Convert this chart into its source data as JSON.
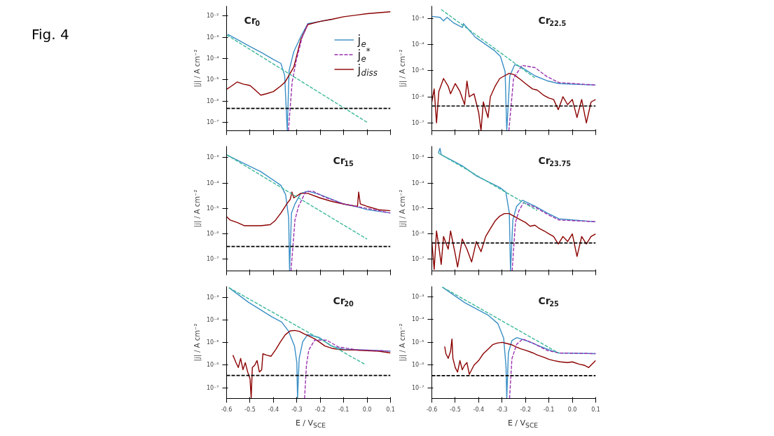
{
  "chart_data": [
    {
      "type": "line",
      "title": "Cr$_{0}$",
      "ylabel": "|j| / A cm⁻²",
      "annotations": [
        "Fig. 4"
      ],
      "log": true,
      "grid": false,
      "legend": "right",
      "marker": "none",
      "tick_labels": "y",
      "xlim": [
        -0.6,
        0.1
      ],
      "ylim": [
        4e-08,
        0.03
      ],
      "xticks": [
        -0.6,
        -0.5,
        -0.4,
        -0.3,
        -0.2,
        -0.1,
        0.0,
        0.1
      ],
      "yticks": [
        {
          "value": 1e-07,
          "label": "10⁻⁷"
        },
        {
          "value": 1e-06,
          "label": "10⁻⁶"
        },
        {
          "value": 1e-05,
          "label": "10⁻⁵"
        },
        {
          "value": 0.0001,
          "label": "10⁻⁴"
        },
        {
          "value": 0.001,
          "label": "10⁻³"
        },
        {
          "value": 0.01,
          "label": "10⁻²"
        }
      ],
      "ref_lines": [
        {
          "axis": "y",
          "value": 4.5e-07,
          "color": "#000000",
          "line_style": "dashed"
        }
      ],
      "series": [
        {
          "name": "j$_{e}$",
          "color": "#3a8fc6",
          "line_style": "solid",
          "x": [
            -0.595,
            -0.5,
            -0.45,
            -0.4,
            -0.368,
            -0.352,
            -0.341,
            -0.333,
            -0.313,
            -0.283,
            -0.253,
            -0.202,
            -0.15
          ],
          "values": [
            0.0014,
            0.00037,
            0.00019,
            9.1e-05,
            5.9e-05,
            1.6e-05,
            4e-08,
            2.8e-05,
            0.00021,
            0.0011,
            0.0044,
            0.0056,
            0.0071
          ]
        },
        {
          "name": "j$_{e}$$^{*}$",
          "color": "#9b30b0",
          "line_style": "dashed",
          "x": [
            -0.336,
            -0.32,
            -0.303,
            -0.278,
            -0.253
          ],
          "values": [
            4e-08,
            7.9e-06,
            7.6e-05,
            0.00095,
            0.0044
          ]
        },
        {
          "name": "j$_{diss}$",
          "color": "#8b0000",
          "line_style": "solid",
          "x": [
            -0.6,
            -0.58,
            -0.555,
            -0.53,
            -0.5,
            -0.48,
            -0.454,
            -0.43,
            -0.4,
            -0.37,
            -0.35,
            -0.33,
            -0.313,
            -0.283,
            -0.253,
            -0.202,
            -0.15,
            -0.1,
            0.0,
            0.1
          ],
          "values": [
            3.6e-06,
            5e-06,
            7.9e-06,
            6.3e-06,
            5.4e-06,
            3.5e-06,
            1.9e-06,
            2.2e-06,
            2.8e-06,
            5e-06,
            7.9e-06,
            1.9e-05,
            4e-05,
            0.00079,
            0.004,
            0.0056,
            0.0071,
            0.0093,
            0.013,
            0.016
          ]
        },
        {
          "type": "line",
          "color": "#3cb89a",
          "line_style": "dashed",
          "x": [
            -0.6,
            0.0
          ],
          "values": [
            0.0013,
            1e-07
          ]
        }
      ]
    },
    {
      "type": "line",
      "title": "Cr$_{22.5}$",
      "ylabel": "|j| / A cm⁻²",
      "log": true,
      "grid": false,
      "marker": "none",
      "tick_labels": "y",
      "xlim": [
        -0.6,
        0.1
      ],
      "ylim": [
        5e-08,
        0.003
      ],
      "xticks": [
        -0.6,
        -0.5,
        -0.4,
        -0.3,
        -0.2,
        -0.1,
        0.0,
        0.1
      ],
      "yticks": [
        {
          "value": 1e-07,
          "label": "10⁻⁷"
        },
        {
          "value": 1e-06,
          "label": "10⁻⁶"
        },
        {
          "value": 1e-05,
          "label": "10⁻⁵"
        },
        {
          "value": 0.0001,
          "label": "10⁻⁴"
        },
        {
          "value": 0.001,
          "label": "10⁻³"
        }
      ],
      "ref_lines": [
        {
          "axis": "y",
          "value": 4.4e-07,
          "color": "#000000",
          "line_style": "dashed"
        }
      ],
      "series": [
        {
          "type": "line",
          "color": "#3a8fc6",
          "line_style": "solid",
          "x": [
            -0.6,
            -0.565,
            -0.55,
            -0.535,
            -0.506,
            -0.47,
            -0.465,
            -0.414,
            -0.333,
            -0.307,
            -0.287,
            -0.28,
            -0.267,
            -0.246,
            -0.22,
            -0.159,
            -0.108,
            -0.057,
            0.1
          ],
          "values": [
            0.0012,
            0.0011,
            0.00081,
            0.0011,
            0.00066,
            0.00045,
            0.00063,
            0.00019,
            5.9e-05,
            3.5e-05,
            9.1e-06,
            5e-08,
            6.3e-06,
            1.7e-05,
            1.4e-05,
            6.3e-06,
            4.1e-06,
            3.2e-06,
            2.8e-06
          ]
        },
        {
          "type": "line",
          "color": "#9b30b0",
          "line_style": "dashed",
          "x": [
            -0.271,
            -0.251,
            -0.215,
            -0.159,
            -0.108,
            -0.057,
            0.1
          ],
          "values": [
            5e-08,
            5e-06,
            1.6e-05,
            1.3e-05,
            5.9e-06,
            3.5e-06,
            2.8e-06
          ]
        },
        {
          "type": "line",
          "color": "#8b0000",
          "line_style": "solid",
          "x": [
            -0.6,
            -0.59,
            -0.58,
            -0.57,
            -0.55,
            -0.53,
            -0.52,
            -0.5,
            -0.48,
            -0.46,
            -0.45,
            -0.44,
            -0.42,
            -0.4,
            -0.39,
            -0.38,
            -0.36,
            -0.35,
            -0.33,
            -0.31,
            -0.29,
            -0.27,
            -0.25,
            -0.22,
            -0.2,
            -0.17,
            -0.15,
            -0.12,
            -0.1,
            -0.08,
            -0.06,
            -0.04,
            -0.02,
            0.0,
            0.02,
            0.04,
            0.06,
            0.08,
            0.1
          ],
          "values": [
            6.3e-07,
            2e-06,
            1e-07,
            1.6e-06,
            5e-06,
            2.5e-06,
            1.3e-06,
            3.2e-06,
            1.6e-06,
            5e-07,
            4e-06,
            1e-06,
            1.3e-06,
            2.5e-07,
            5e-08,
            6.3e-07,
            1.6e-07,
            1e-06,
            2.5e-06,
            5e-06,
            6.3e-06,
            7.9e-06,
            7.1e-06,
            4.5e-06,
            3.2e-06,
            2e-06,
            1.8e-06,
            1.1e-06,
            8.9e-07,
            7.9e-07,
            3.2e-07,
            1e-06,
            5e-07,
            7.9e-07,
            1.6e-07,
            7.9e-07,
            1e-07,
            6.3e-07,
            7.9e-07
          ]
        },
        {
          "type": "line",
          "color": "#3cb89a",
          "line_style": "dashed",
          "x": [
            -0.56,
            -0.16
          ],
          "values": [
            0.0022,
            5.3e-06
          ]
        }
      ]
    },
    {
      "type": "line",
      "title": "Cr$_{15}$",
      "ylabel": "|j| / A cm⁻²",
      "log": true,
      "grid": false,
      "marker": "none",
      "tick_labels": "y",
      "xlim": [
        -0.6,
        0.1
      ],
      "ylim": [
        3.5e-08,
        0.0028
      ],
      "xticks": [
        -0.6,
        -0.5,
        -0.4,
        -0.3,
        -0.2,
        -0.1,
        0.0,
        0.1
      ],
      "yticks": [
        {
          "value": 1e-07,
          "label": "10⁻⁷"
        },
        {
          "value": 1e-06,
          "label": "10⁻⁶"
        },
        {
          "value": 1e-05,
          "label": "10⁻⁵"
        },
        {
          "value": 0.0001,
          "label": "10⁻⁴"
        },
        {
          "value": 0.001,
          "label": "10⁻³"
        }
      ],
      "ref_lines": [
        {
          "axis": "y",
          "value": 3.2e-07,
          "color": "#000000",
          "line_style": "dashed"
        }
      ],
      "series": [
        {
          "type": "line",
          "color": "#3a8fc6",
          "line_style": "solid",
          "x": [
            -0.595,
            -0.454,
            -0.368,
            -0.348,
            -0.335,
            -0.331,
            -0.323,
            -0.308,
            -0.283,
            -0.253,
            -0.202,
            -0.152,
            -0.101,
            -0.05,
            0.0,
            0.1
          ],
          "values": [
            0.0012,
            0.00028,
            8.1e-05,
            3.5e-05,
            4.4e-06,
            3.5e-08,
            6.6e-06,
            1.5e-05,
            3.9e-05,
            4.8e-05,
            3.5e-05,
            2.3e-05,
            1.5e-05,
            1.2e-05,
            8.9e-06,
            6.6e-06
          ]
        },
        {
          "type": "line",
          "color": "#9b30b0",
          "line_style": "dashed",
          "x": [
            -0.325,
            -0.308,
            -0.293,
            -0.263,
            -0.232,
            -0.182,
            -0.101,
            0.0,
            0.1
          ],
          "values": [
            3.5e-08,
            3.5e-06,
            1.2e-05,
            4.4e-05,
            4.8e-05,
            2.8e-05,
            1.5e-05,
            1e-05,
            6.6e-06
          ]
        },
        {
          "type": "line",
          "color": "#8b0000",
          "line_style": "solid",
          "x": [
            -0.6,
            -0.585,
            -0.555,
            -0.525,
            -0.494,
            -0.454,
            -0.414,
            -0.394,
            -0.368,
            -0.343,
            -0.328,
            -0.321,
            -0.313,
            -0.283,
            -0.253,
            -0.202,
            -0.152,
            -0.101,
            -0.041,
            -0.036,
            -0.029,
            0.0,
            0.05,
            0.1
          ],
          "values": [
            4.8e-06,
            3.5e-06,
            2.8e-06,
            2.1e-06,
            2.1e-06,
            2.1e-06,
            2.3e-06,
            3.2e-06,
            6.6e-06,
            1.5e-05,
            2.3e-05,
            4.4e-05,
            2.6e-05,
            3.9e-05,
            3.9e-05,
            2.6e-05,
            1.9e-05,
            1.5e-05,
            1.2e-05,
            4.4e-05,
            1.5e-05,
            1.2e-05,
            8.9e-06,
            8.1e-06
          ]
        },
        {
          "type": "line",
          "color": "#3cb89a",
          "line_style": "dashed",
          "x": [
            -0.6,
            0.0
          ],
          "values": [
            0.0013,
            6.2e-07
          ]
        }
      ]
    },
    {
      "type": "line",
      "title": "Cr$_{23.75}$",
      "ylabel": "|j| / A cm⁻²",
      "log": true,
      "grid": false,
      "marker": "none",
      "tick_labels": "y",
      "xlim": [
        -0.6,
        0.1
      ],
      "ylim": [
        3.5e-08,
        0.0028
      ],
      "xticks": [
        -0.6,
        -0.5,
        -0.4,
        -0.3,
        -0.2,
        -0.1,
        0.0,
        0.1
      ],
      "yticks": [
        {
          "value": 1e-07,
          "label": "10⁻⁷"
        },
        {
          "value": 1e-06,
          "label": "10⁻⁶"
        },
        {
          "value": 1e-05,
          "label": "10⁻⁵"
        },
        {
          "value": 0.0001,
          "label": "10⁻⁴"
        },
        {
          "value": 0.001,
          "label": "10⁻³"
        }
      ],
      "ref_lines": [
        {
          "axis": "y",
          "value": 4.4e-07,
          "color": "#000000",
          "line_style": "dashed"
        }
      ],
      "series": [
        {
          "type": "line",
          "color": "#3a8fc6",
          "line_style": "solid",
          "x": [
            -0.572,
            -0.565,
            -0.56,
            -0.471,
            -0.41,
            -0.309,
            -0.284,
            -0.269,
            -0.264,
            -0.254,
            -0.238,
            -0.213,
            -0.158,
            -0.107,
            -0.057,
            0.1
          ],
          "values": [
            0.0015,
            0.0023,
            0.0013,
            0.00048,
            0.00019,
            6.6e-05,
            4.4e-05,
            6.6e-06,
            3.5e-08,
            3.5e-06,
            1.2e-05,
            2.1e-05,
            1.2e-05,
            6.6e-06,
            3.9e-06,
            3e-06
          ]
        },
        {
          "type": "line",
          "color": "#9b30b0",
          "line_style": "dashed",
          "x": [
            -0.257,
            -0.243,
            -0.228,
            -0.208,
            -0.158,
            -0.107,
            -0.057,
            0.1
          ],
          "values": [
            3.5e-08,
            2.8e-06,
            8.1e-06,
            1.7e-05,
            1.1e-05,
            5.9e-06,
            3.5e-06,
            3e-06
          ]
        },
        {
          "type": "line",
          "color": "#8b0000",
          "line_style": "solid",
          "x": [
            -0.6,
            -0.59,
            -0.58,
            -0.57,
            -0.56,
            -0.55,
            -0.53,
            -0.52,
            -0.5,
            -0.49,
            -0.47,
            -0.45,
            -0.43,
            -0.41,
            -0.39,
            -0.37,
            -0.35,
            -0.33,
            -0.31,
            -0.29,
            -0.27,
            -0.25,
            -0.22,
            -0.2,
            -0.18,
            -0.16,
            -0.14,
            -0.12,
            -0.1,
            -0.08,
            -0.06,
            -0.04,
            -0.02,
            0.0,
            0.02,
            0.04,
            0.06,
            0.08,
            0.1
          ],
          "values": [
            5e-07,
            4e-08,
            1.3e-06,
            3.2e-07,
            6.3e-08,
            7.9e-07,
            2.5e-07,
            1.3e-06,
            1.6e-07,
            5e-08,
            6.3e-07,
            2.5e-07,
            7.9e-08,
            5e-07,
            2e-07,
            7.9e-07,
            1.6e-06,
            3.2e-06,
            5e-06,
            6.3e-06,
            6.3e-06,
            5e-06,
            3.5e-06,
            2.8e-06,
            2e-06,
            2.2e-06,
            1.6e-06,
            1.3e-06,
            1e-06,
            7.9e-07,
            4e-07,
            7.9e-07,
            5e-07,
            1e-06,
            1.3e-07,
            7.9e-07,
            4e-07,
            7.9e-07,
            1e-06
          ]
        },
        {
          "type": "line",
          "color": "#3cb89a",
          "line_style": "dashed",
          "x": [
            -0.572,
            -0.15
          ],
          "values": [
            0.0015,
            8.3e-06
          ]
        }
      ]
    },
    {
      "type": "line",
      "title": "Cr$_{20}$",
      "xlabel": "E / V$_{SCE}$",
      "ylabel": "|j| / A cm⁻²",
      "log": true,
      "grid": false,
      "marker": "none",
      "xlim": [
        -0.6,
        0.1
      ],
      "ylim": [
        3.3e-08,
        0.0032
      ],
      "xticks": [
        -0.6,
        -0.5,
        -0.4,
        -0.3,
        -0.2,
        -0.1,
        {
          "value": 0,
          "label": "0.0"
        },
        0.1
      ],
      "yticks": [
        {
          "value": 1e-07,
          "label": "10⁻⁷"
        },
        {
          "value": 1e-06,
          "label": "10⁻⁶"
        },
        {
          "value": 1e-05,
          "label": "10⁻⁵"
        },
        {
          "value": 0.0001,
          "label": "10⁻⁴"
        },
        {
          "value": 0.001,
          "label": "10⁻³"
        }
      ],
      "ref_lines": [
        {
          "axis": "y",
          "value": 3.5e-07,
          "color": "#000000",
          "line_style": "dashed"
        }
      ],
      "series": [
        {
          "type": "line",
          "color": "#3a8fc6",
          "line_style": "solid",
          "x": [
            -0.59,
            -0.507,
            -0.406,
            -0.365,
            -0.335,
            -0.31,
            -0.3,
            -0.297,
            -0.29,
            -0.275,
            -0.254,
            -0.204,
            -0.153,
            -0.102,
            0.0,
            0.1
          ],
          "values": [
            0.0028,
            0.00063,
            0.00014,
            8.3e-05,
            3.2e-05,
            7.1e-06,
            1.3e-06,
            3.3e-08,
            2e-06,
            1.1e-05,
            2.3e-05,
            1.7e-05,
            7.1e-06,
            5.1e-06,
            4.7e-06,
            4.2e-06
          ]
        },
        {
          "type": "line",
          "color": "#9b30b0",
          "line_style": "dashed",
          "x": [
            -0.267,
            -0.259,
            -0.249,
            -0.224,
            -0.173,
            -0.123,
            -0.05,
            0.1
          ],
          "values": [
            3.3e-08,
            1e-06,
            4.7e-06,
            1.3e-05,
            1.3e-05,
            6.5e-06,
            4.9e-06,
            4.2e-06
          ]
        },
        {
          "type": "line",
          "color": "#8b0000",
          "line_style": "solid",
          "x": [
            -0.573,
            -0.56,
            -0.55,
            -0.54,
            -0.53,
            -0.52,
            -0.51,
            -0.5,
            -0.495,
            -0.49,
            -0.48,
            -0.47,
            -0.46,
            -0.45,
            -0.445,
            -0.43,
            -0.41,
            -0.39,
            -0.37,
            -0.35,
            -0.33,
            -0.31,
            -0.29,
            -0.27,
            -0.25,
            -0.22,
            -0.2,
            -0.18,
            -0.15,
            -0.12,
            -0.1,
            -0.05,
            0.0,
            0.05,
            0.1
          ],
          "values": [
            2.8e-06,
            1.3e-06,
            7.9e-07,
            2e-06,
            6.3e-07,
            1.3e-06,
            5e-07,
            2.5e-07,
            3.5e-08,
            7.9e-07,
            1e-06,
            1.6e-06,
            5e-07,
            6.3e-07,
            3.2e-06,
            2.8e-06,
            2.5e-06,
            5e-06,
            1.1e-05,
            2.2e-05,
            3.3e-05,
            3.5e-05,
            3.2e-05,
            2.5e-05,
            2e-05,
            1.4e-05,
            1e-05,
            7.1e-06,
            5.6e-06,
            5e-06,
            4.8e-06,
            4.7e-06,
            4.4e-06,
            4.2e-06,
            3.5e-06
          ]
        },
        {
          "type": "line",
          "color": "#3cb89a",
          "line_style": "dashed",
          "x": [
            -0.59,
            -0.01
          ],
          "values": [
            0.0028,
            1.1e-06
          ]
        }
      ]
    },
    {
      "type": "line",
      "title": "Cr$_{25}$",
      "xlabel": "E / V$_{SCE}$",
      "ylabel": "|j| / A cm⁻²",
      "log": true,
      "grid": false,
      "marker": "none",
      "xlim": [
        -0.6,
        0.1
      ],
      "ylim": [
        3.5e-08,
        0.0028
      ],
      "xticks": [
        -0.6,
        -0.5,
        -0.4,
        -0.3,
        -0.2,
        -0.1,
        {
          "value": 0,
          "label": "0.0"
        },
        0.1
      ],
      "yticks": [
        {
          "value": 1e-07,
          "label": "10⁻⁷"
        },
        {
          "value": 1e-06,
          "label": "10⁻⁶"
        },
        {
          "value": 1e-05,
          "label": "10⁻⁵"
        },
        {
          "value": 0.0001,
          "label": "10⁻⁴"
        },
        {
          "value": 0.001,
          "label": "10⁻³"
        }
      ],
      "ref_lines": [
        {
          "axis": "y",
          "value": 3.5e-07,
          "color": "#000000",
          "line_style": "dashed"
        }
      ],
      "series": [
        {
          "type": "line",
          "color": "#3a8fc6",
          "line_style": "solid",
          "x": [
            -0.555,
            -0.459,
            -0.358,
            -0.318,
            -0.293,
            -0.283,
            -0.28,
            -0.273,
            -0.258,
            -0.237,
            -0.187,
            -0.137,
            -0.086,
            -0.056,
            0.1
          ],
          "values": [
            0.0026,
            0.00054,
            0.00015,
            6.6e-05,
            1.5e-05,
            8.1e-07,
            3.5e-08,
            3.5e-06,
            1.2e-05,
            1.6e-05,
            1.1e-05,
            6.6e-06,
            4.2e-06,
            3.4e-06,
            3.2e-06
          ]
        },
        {
          "type": "line",
          "color": "#9b30b0",
          "line_style": "dashed",
          "x": [
            -0.268,
            -0.258,
            -0.238,
            -0.212,
            -0.157,
            -0.107,
            -0.056,
            0.1
          ],
          "values": [
            3.5e-08,
            1.9e-06,
            8.1e-06,
            1.4e-05,
            8.1e-06,
            4.4e-06,
            3.4e-06,
            3.2e-06
          ]
        },
        {
          "type": "line",
          "color": "#8b0000",
          "line_style": "solid",
          "x": [
            -0.545,
            -0.54,
            -0.53,
            -0.52,
            -0.514,
            -0.51,
            -0.5,
            -0.49,
            -0.48,
            -0.47,
            -0.46,
            -0.45,
            -0.44,
            -0.43,
            -0.42,
            -0.4,
            -0.38,
            -0.36,
            -0.34,
            -0.32,
            -0.3,
            -0.28,
            -0.26,
            -0.24,
            -0.22,
            -0.2,
            -0.17,
            -0.15,
            -0.12,
            -0.1,
            -0.08,
            -0.05,
            -0.02,
            0.0,
            0.03,
            0.05,
            0.07,
            0.1
          ],
          "values": [
            6.6e-06,
            3.2e-06,
            2e-06,
            4e-06,
            1.4e-05,
            2e-06,
            7.9e-07,
            5e-07,
            1.6e-06,
            6.3e-07,
            1e-06,
            1.3e-06,
            4e-07,
            6.3e-07,
            1e-06,
            1.6e-06,
            3.2e-06,
            5e-06,
            7.9e-06,
            9.3e-06,
            1e-05,
            8.9e-06,
            7.9e-06,
            6.3e-06,
            5.2e-06,
            4.5e-06,
            3.5e-06,
            2.8e-06,
            2.2e-06,
            1.8e-06,
            1.6e-06,
            1.4e-06,
            1.3e-06,
            1.4e-06,
            1.1e-06,
            1e-06,
            7.9e-07,
            1.6e-06
          ]
        },
        {
          "type": "line",
          "color": "#3cb89a",
          "line_style": "dashed",
          "x": [
            -0.555,
            -0.056
          ],
          "values": [
            0.0026,
            3.3e-06
          ]
        }
      ]
    }
  ]
}
